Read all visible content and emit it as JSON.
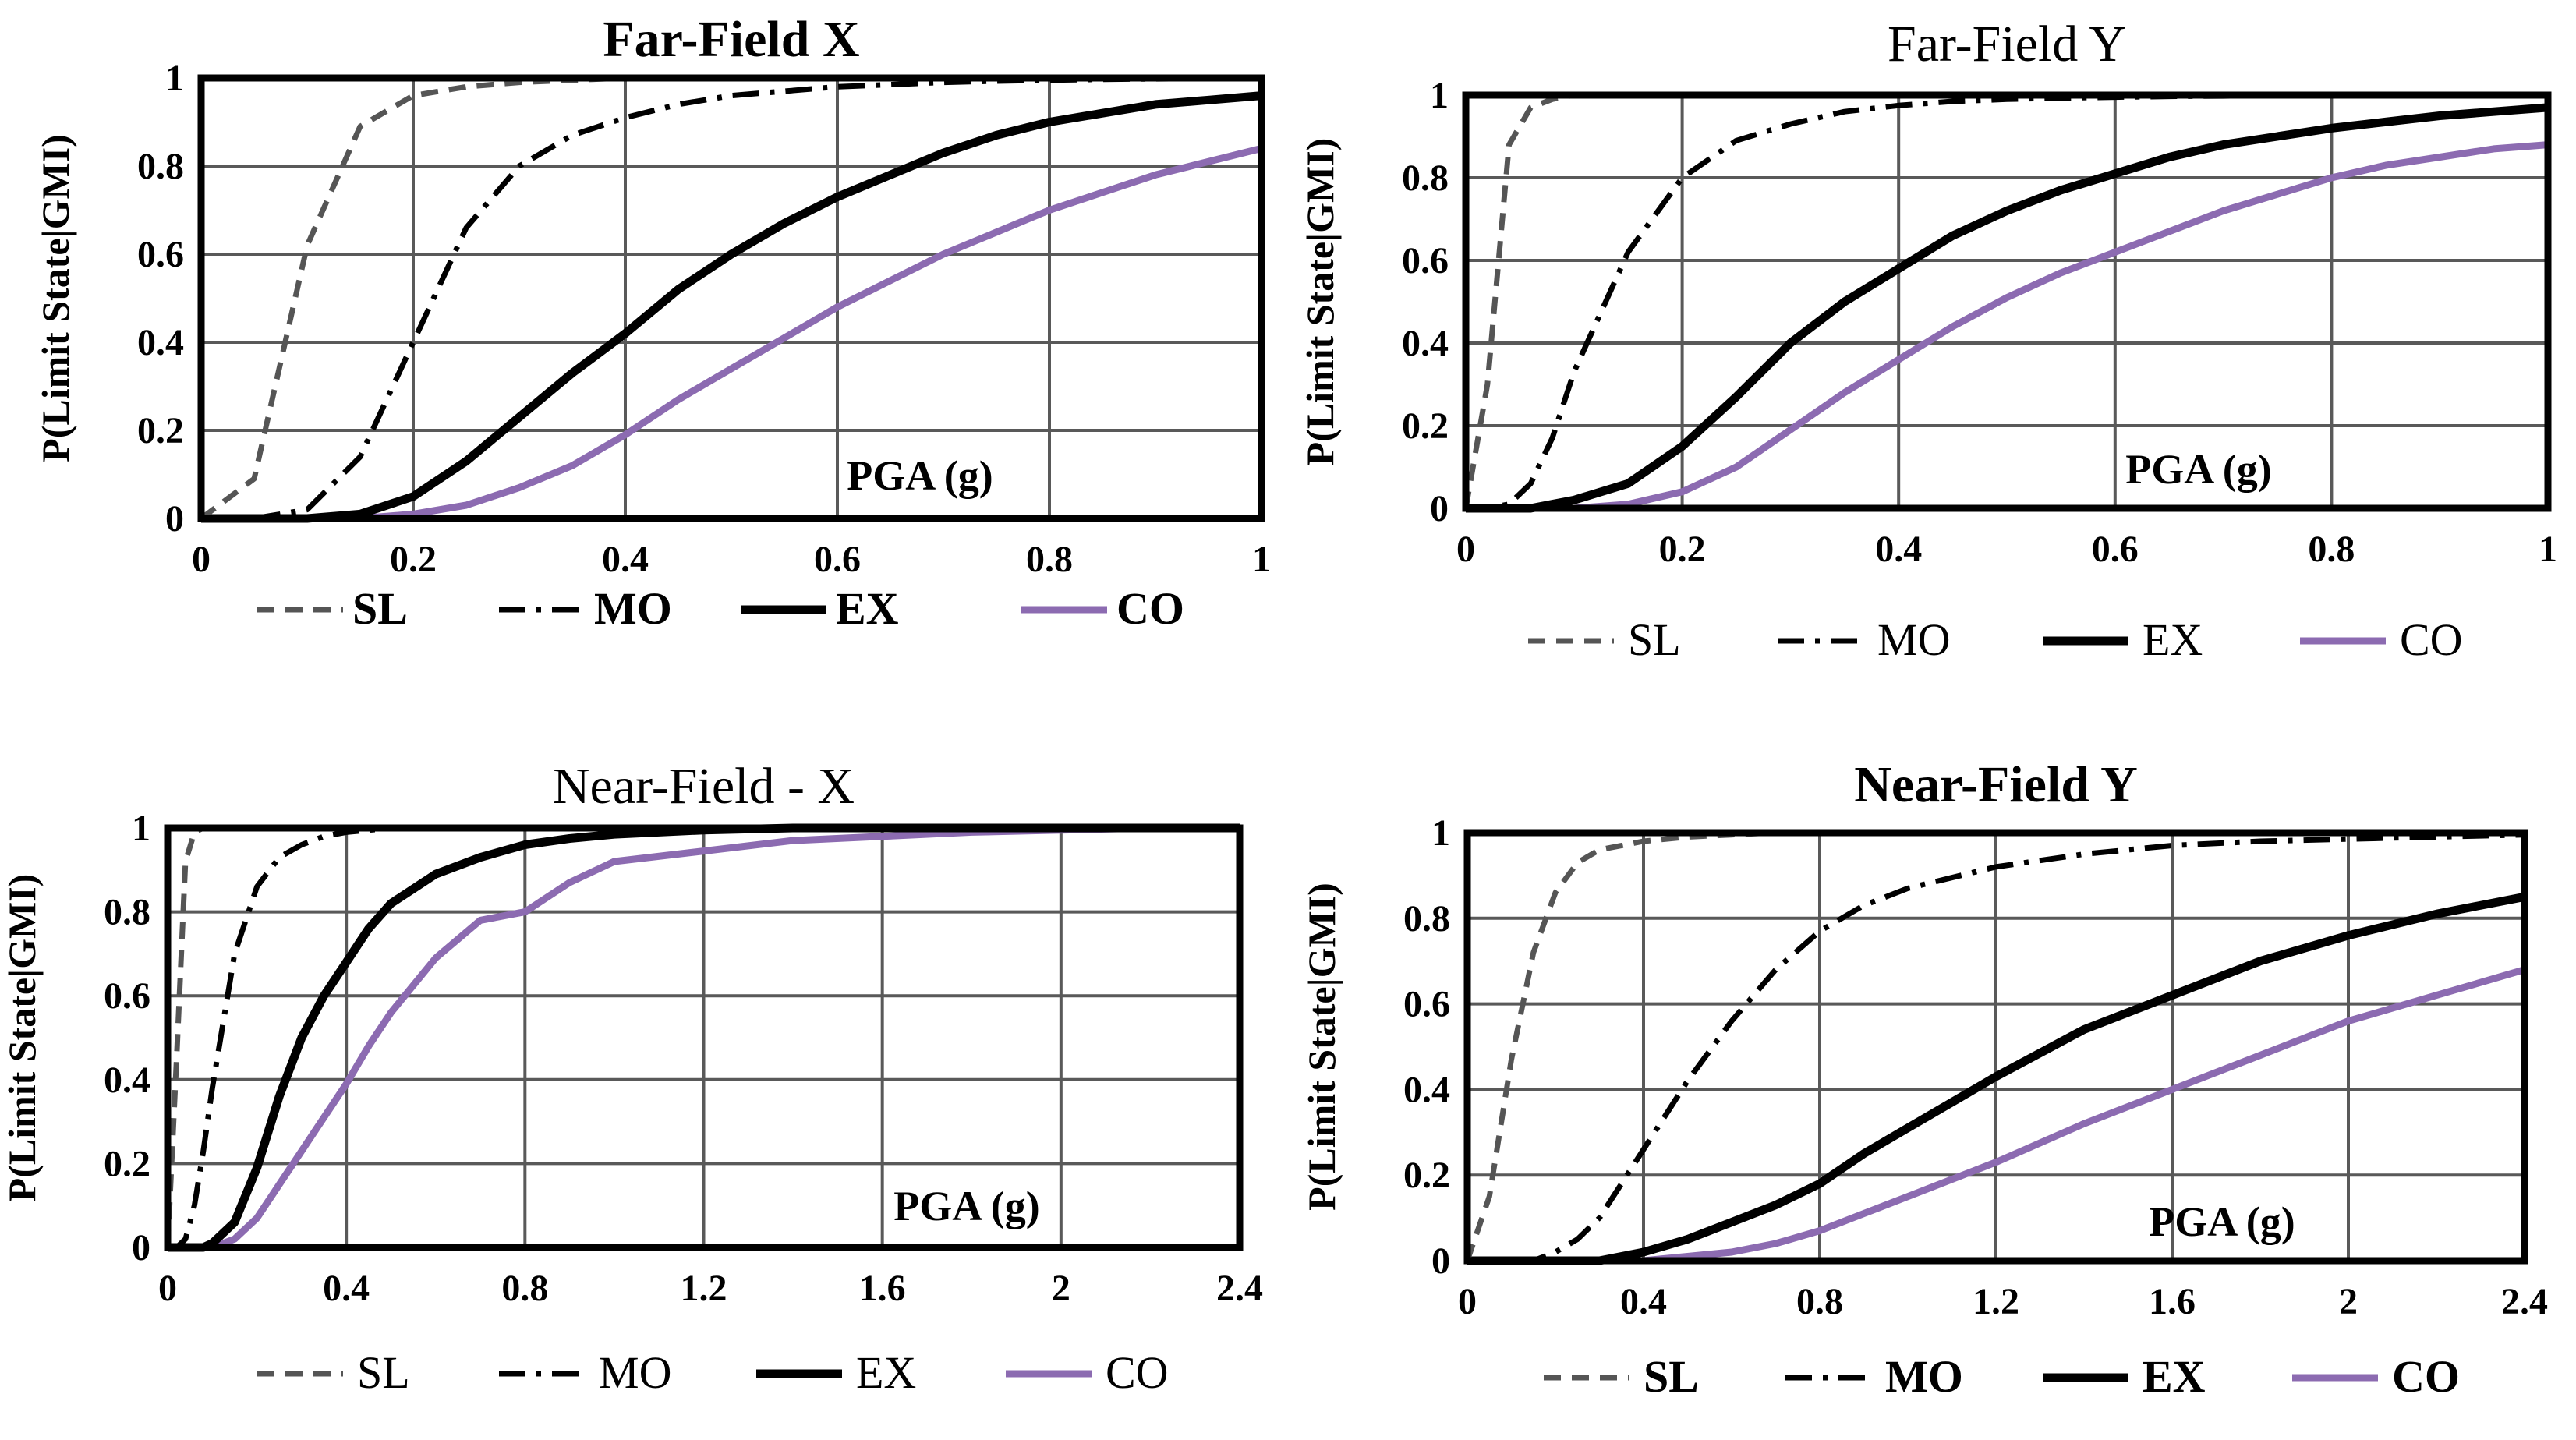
{
  "figure": {
    "description_free": true,
    "series_styles": {
      "SL": {
        "color": "#555555",
        "dash": "22,14"
      },
      "MO": {
        "color": "#000000",
        "dash": "34,14,6,14"
      },
      "EX": {
        "color": "#000000",
        "dash": ""
      },
      "CO": {
        "color": "#8C6BB1",
        "dash": ""
      }
    }
  },
  "chart_data": [
    {
      "type": "line",
      "title": "Far-Field X",
      "xlabel": "PGA (g)",
      "ylabel": "P(Limit State|GMI)",
      "xlim": [
        0,
        1
      ],
      "ylim": [
        0,
        1
      ],
      "xticks": [
        "0",
        "0.2",
        "0.4",
        "0.6",
        "0.8",
        "1"
      ],
      "yticks": [
        "0",
        "0.2",
        "0.4",
        "0.6",
        "0.8",
        "1"
      ],
      "x": [
        0,
        0.05,
        0.1,
        0.15,
        0.2,
        0.25,
        0.3,
        0.35,
        0.4,
        0.45,
        0.5,
        0.55,
        0.6,
        0.65,
        0.7,
        0.75,
        0.8,
        0.85,
        0.9,
        0.95,
        1.0
      ],
      "series": [
        {
          "name": "SL",
          "values": [
            0,
            0.09,
            0.62,
            0.89,
            0.96,
            0.98,
            0.99,
            0.995,
            1,
            1,
            1,
            1,
            1,
            1,
            1,
            1,
            1,
            1,
            1,
            1,
            1
          ]
        },
        {
          "name": "MO",
          "values": [
            0,
            0.0,
            0.02,
            0.14,
            0.4,
            0.66,
            0.8,
            0.87,
            0.91,
            0.94,
            0.96,
            0.97,
            0.98,
            0.985,
            0.99,
            0.993,
            0.995,
            0.997,
            0.998,
            0.999,
            1
          ]
        },
        {
          "name": "EX",
          "values": [
            0,
            0,
            0.0,
            0.01,
            0.05,
            0.13,
            0.23,
            0.33,
            0.42,
            0.52,
            0.6,
            0.67,
            0.73,
            0.78,
            0.83,
            0.87,
            0.9,
            0.92,
            0.94,
            0.95,
            0.96
          ]
        },
        {
          "name": "CO",
          "values": [
            0,
            0,
            0,
            0,
            0.01,
            0.03,
            0.07,
            0.12,
            0.19,
            0.27,
            0.34,
            0.41,
            0.48,
            0.54,
            0.6,
            0.65,
            0.7,
            0.74,
            0.78,
            0.81,
            0.84
          ]
        }
      ],
      "legend": [
        "SL",
        "MO",
        "EX",
        "CO"
      ]
    },
    {
      "type": "line",
      "title": "Far-Field Y",
      "xlabel": "PGA (g)",
      "ylabel": "P(Limit State|GMI)",
      "xlim": [
        0,
        1
      ],
      "ylim": [
        0,
        1
      ],
      "xticks": [
        "0",
        "0.2",
        "0.4",
        "0.6",
        "0.8",
        "1"
      ],
      "yticks": [
        "0",
        "0.2",
        "0.4",
        "0.6",
        "0.8",
        "1"
      ],
      "x": [
        0,
        0.02,
        0.04,
        0.06,
        0.08,
        0.1,
        0.15,
        0.2,
        0.25,
        0.3,
        0.35,
        0.4,
        0.45,
        0.5,
        0.55,
        0.6,
        0.65,
        0.7,
        0.75,
        0.8,
        0.85,
        0.9,
        0.95,
        1.0
      ],
      "series": [
        {
          "name": "SL",
          "values": [
            0,
            0.3,
            0.88,
            0.97,
            0.99,
            1,
            1,
            1,
            1,
            1,
            1,
            1,
            1,
            1,
            1,
            1,
            1,
            1,
            1,
            1,
            1,
            1,
            1,
            1
          ]
        },
        {
          "name": "MO",
          "values": [
            0,
            0.0,
            0.01,
            0.06,
            0.17,
            0.33,
            0.62,
            0.8,
            0.89,
            0.93,
            0.96,
            0.975,
            0.985,
            0.99,
            0.993,
            0.995,
            0.997,
            0.998,
            0.999,
            1,
            1,
            1,
            1,
            1
          ]
        },
        {
          "name": "EX",
          "values": [
            0,
            0,
            0,
            0.0,
            0.01,
            0.02,
            0.06,
            0.15,
            0.27,
            0.4,
            0.5,
            0.58,
            0.66,
            0.72,
            0.77,
            0.81,
            0.85,
            0.88,
            0.9,
            0.92,
            0.935,
            0.95,
            0.96,
            0.97
          ]
        },
        {
          "name": "CO",
          "values": [
            0,
            0,
            0,
            0,
            0,
            0.0,
            0.01,
            0.04,
            0.1,
            0.19,
            0.28,
            0.36,
            0.44,
            0.51,
            0.57,
            0.62,
            0.67,
            0.72,
            0.76,
            0.8,
            0.83,
            0.85,
            0.87,
            0.88
          ]
        }
      ],
      "legend": [
        "SL",
        "MO",
        "EX",
        "CO"
      ]
    },
    {
      "type": "line",
      "title": "Near-Field - X",
      "xlabel": "PGA (g)",
      "ylabel": "P(Limit State|GMI)",
      "xlim": [
        0,
        2.4
      ],
      "ylim": [
        0,
        1
      ],
      "xticks": [
        "0",
        "0.4",
        "0.8",
        "1.2",
        "1.6",
        "2",
        "2.4"
      ],
      "yticks": [
        "0",
        "0.2",
        "0.4",
        "0.6",
        "0.8",
        "1"
      ],
      "x": [
        0,
        0.02,
        0.04,
        0.06,
        0.08,
        0.1,
        0.15,
        0.2,
        0.25,
        0.3,
        0.35,
        0.4,
        0.45,
        0.5,
        0.6,
        0.7,
        0.8,
        0.9,
        1.0,
        1.2,
        1.4,
        1.6,
        1.8,
        2.0,
        2.2,
        2.4
      ],
      "series": [
        {
          "name": "SL",
          "values": [
            0,
            0.45,
            0.92,
            0.99,
            1,
            1,
            1,
            1,
            1,
            1,
            1,
            1,
            1,
            1,
            1,
            1,
            1,
            1,
            1,
            1,
            1,
            1,
            1,
            1,
            1,
            1
          ]
        },
        {
          "name": "MO",
          "values": [
            0,
            0.0,
            0.02,
            0.1,
            0.23,
            0.38,
            0.7,
            0.86,
            0.93,
            0.96,
            0.98,
            0.99,
            0.995,
            1,
            1,
            1,
            1,
            1,
            1,
            1,
            1,
            1,
            1,
            1,
            1,
            1
          ]
        },
        {
          "name": "EX",
          "values": [
            0,
            0,
            0,
            0,
            0.0,
            0.01,
            0.06,
            0.19,
            0.36,
            0.5,
            0.6,
            0.68,
            0.76,
            0.82,
            0.89,
            0.93,
            0.96,
            0.975,
            0.985,
            0.995,
            1,
            1,
            1,
            1,
            1,
            1
          ]
        },
        {
          "name": "CO",
          "values": [
            0,
            0,
            0,
            0,
            0,
            0.0,
            0.02,
            0.07,
            0.15,
            0.23,
            0.31,
            0.39,
            0.48,
            0.56,
            0.69,
            0.78,
            0.8,
            0.87,
            0.92,
            0.945,
            0.97,
            0.98,
            0.99,
            0.995,
            1,
            1
          ]
        }
      ],
      "legend": [
        "SL",
        "MO",
        "EX",
        "CO"
      ]
    },
    {
      "type": "line",
      "title": "Near-Field Y",
      "xlabel": "PGA (g)",
      "ylabel": "P(Limit State|GMI)",
      "xlim": [
        0,
        2.4
      ],
      "ylim": [
        0,
        1
      ],
      "xticks": [
        "0",
        "0.4",
        "0.8",
        "1.2",
        "1.6",
        "2",
        "2.4"
      ],
      "yticks": [
        "0",
        "0.2",
        "0.4",
        "0.6",
        "0.8",
        "1"
      ],
      "x": [
        0,
        0.05,
        0.1,
        0.15,
        0.2,
        0.25,
        0.3,
        0.4,
        0.5,
        0.6,
        0.7,
        0.8,
        0.9,
        1.0,
        1.2,
        1.4,
        1.6,
        1.8,
        2.0,
        2.2,
        2.4
      ],
      "series": [
        {
          "name": "SL",
          "values": [
            0,
            0.15,
            0.47,
            0.72,
            0.86,
            0.93,
            0.96,
            0.98,
            0.99,
            0.995,
            1,
            1,
            1,
            1,
            1,
            1,
            1,
            1,
            1,
            1,
            1
          ]
        },
        {
          "name": "MO",
          "values": [
            0,
            0,
            0,
            0.0,
            0.02,
            0.05,
            0.1,
            0.26,
            0.42,
            0.56,
            0.68,
            0.77,
            0.83,
            0.87,
            0.92,
            0.95,
            0.97,
            0.98,
            0.985,
            0.99,
            0.995
          ]
        },
        {
          "name": "EX",
          "values": [
            0,
            0,
            0,
            0,
            0,
            0.0,
            0.0,
            0.02,
            0.05,
            0.09,
            0.13,
            0.18,
            0.25,
            0.31,
            0.43,
            0.54,
            0.62,
            0.7,
            0.76,
            0.81,
            0.85
          ]
        },
        {
          "name": "CO",
          "values": [
            0,
            0,
            0,
            0,
            0,
            0,
            0,
            0.0,
            0.01,
            0.02,
            0.04,
            0.07,
            0.11,
            0.15,
            0.23,
            0.32,
            0.4,
            0.48,
            0.56,
            0.62,
            0.68
          ]
        }
      ],
      "legend": [
        "SL",
        "MO",
        "EX",
        "CO"
      ]
    }
  ]
}
